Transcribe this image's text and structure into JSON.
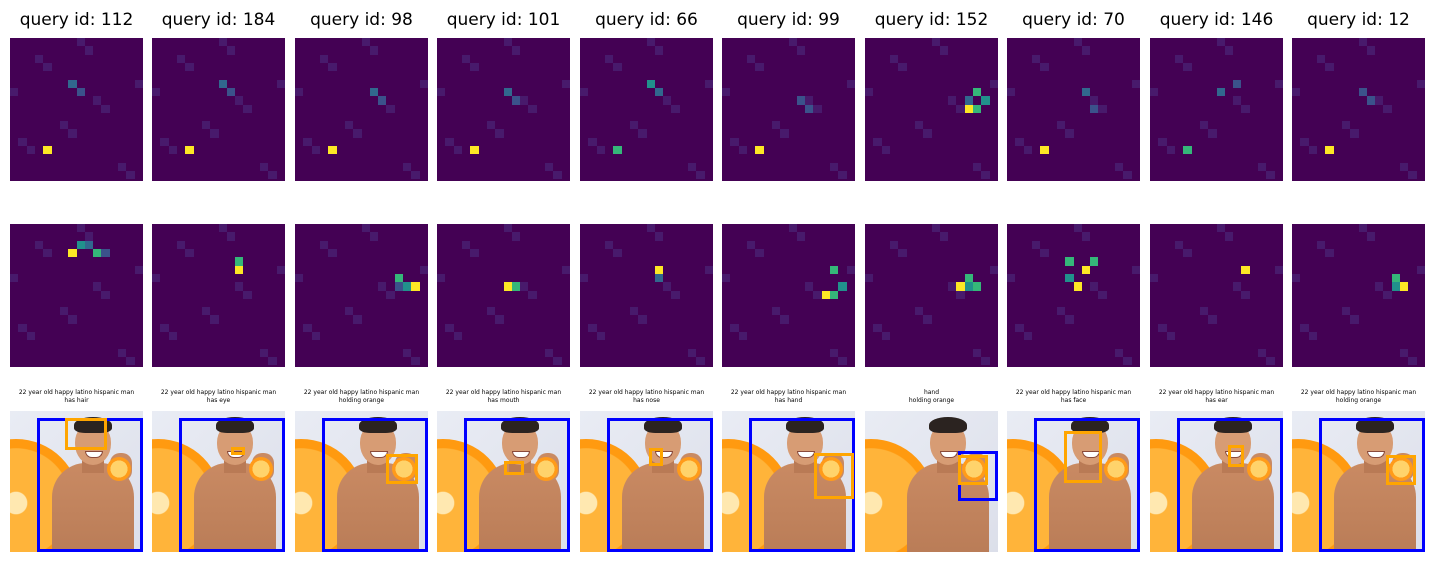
{
  "colors": {
    "heat_background": "#440154",
    "subject_box": "#0000ff",
    "object_box": "#ffa500"
  },
  "panels": [
    {
      "title": "query id: 112",
      "caption_line1": "22 year old happy latino hispanic man",
      "caption_line2": "has hair"
    },
    {
      "title": "query id: 184",
      "caption_line1": "22 year old happy latino hispanic man",
      "caption_line2": "has eye"
    },
    {
      "title": "query id: 98",
      "caption_line1": "22 year old happy latino hispanic man",
      "caption_line2": "holding orange"
    },
    {
      "title": "query id: 101",
      "caption_line1": "22 year old happy latino hispanic man",
      "caption_line2": "has mouth"
    },
    {
      "title": "query id: 66",
      "caption_line1": "22 year old happy latino hispanic man",
      "caption_line2": "has nose"
    },
    {
      "title": "query id: 99",
      "caption_line1": "22 year old happy latino hispanic man",
      "caption_line2": "has hand"
    },
    {
      "title": "query id: 152",
      "caption_line1": "hand",
      "caption_line2": "holding orange"
    },
    {
      "title": "query id: 70",
      "caption_line1": "22 year old happy latino hispanic man",
      "caption_line2": "has face"
    },
    {
      "title": "query id: 146",
      "caption_line1": "22 year old happy latino hispanic man",
      "caption_line2": "has ear"
    },
    {
      "title": "query id: 12",
      "caption_line1": "22 year old happy latino hispanic man",
      "caption_line2": "holding orange"
    }
  ]
}
